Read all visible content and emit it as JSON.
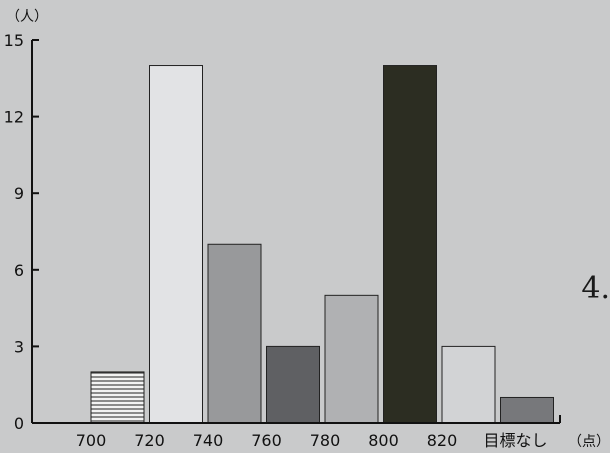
{
  "side_label": "4.",
  "chart_data": {
    "type": "bar",
    "y_unit": "（人）",
    "x_unit": "（点）",
    "ylim": [
      0,
      15
    ],
    "yticks": [
      0,
      3,
      6,
      9,
      12,
      15
    ],
    "xtick_labels": [
      "700",
      "720",
      "740",
      "760",
      "780",
      "800",
      "820",
      "目標なし"
    ],
    "bars": [
      {
        "from": "700",
        "to": "720",
        "value": 2,
        "fill": "#f2f2f2",
        "pattern": "horizontal-lines"
      },
      {
        "from": "720",
        "to": "740",
        "value": 14,
        "fill": "#e2e3e5"
      },
      {
        "from": "740",
        "to": "760",
        "value": 7,
        "fill": "#98999b"
      },
      {
        "from": "760",
        "to": "780",
        "value": 3,
        "fill": "#5f6063"
      },
      {
        "from": "780",
        "to": "800",
        "value": 5,
        "fill": "#b0b1b3"
      },
      {
        "from": "800",
        "to": "820",
        "value": 14,
        "fill": "#2c2d22"
      },
      {
        "from": "820",
        "to": "目標なし",
        "value": 3,
        "fill": "#d2d3d5"
      },
      {
        "from": "目標なし",
        "to": "",
        "value": 1,
        "fill": "#77787b"
      }
    ],
    "grid": false,
    "legend": "none"
  }
}
